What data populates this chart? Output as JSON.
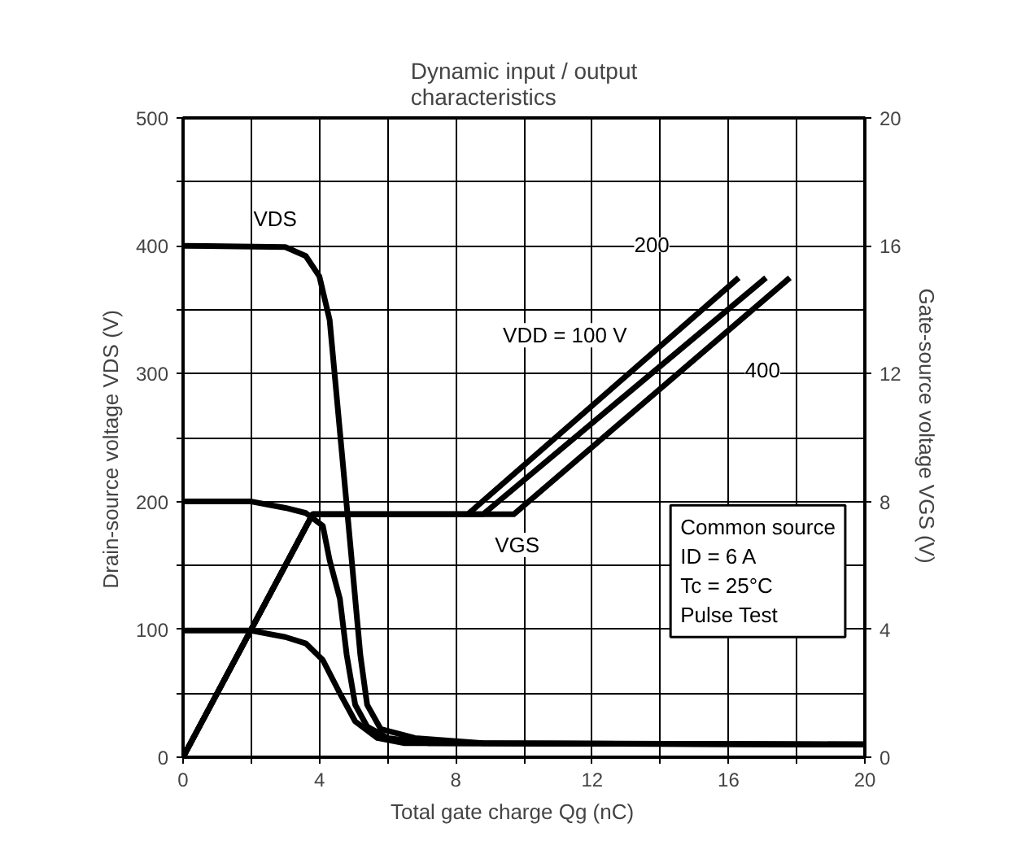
{
  "chart_data": {
    "type": "line",
    "title": "Dynamic input / output\ncharacteristics",
    "xlabel": "Total gate charge   Qg   (nC)",
    "ylabel": "Drain-source voltage   VDS   (V)",
    "y2label": "Gate-source voltage   VGS   (V)",
    "xlim": [
      0,
      20
    ],
    "ylim": [
      0,
      500
    ],
    "y2lim": [
      0,
      20
    ],
    "xticks": [
      0,
      {
        "value": 2,
        "label": null
      },
      4,
      {
        "value": 6,
        "label": null
      },
      8,
      {
        "value": 10,
        "label": null
      },
      12,
      {
        "value": 14,
        "label": null
      },
      16,
      {
        "value": 18,
        "label": null
      },
      20
    ],
    "yticks": [
      0,
      {
        "value": 50,
        "label": null
      },
      100,
      {
        "value": 150,
        "label": null
      },
      200,
      {
        "value": 250,
        "label": null
      },
      300,
      {
        "value": 350,
        "label": null
      },
      400,
      {
        "value": 450,
        "label": null
      },
      500
    ],
    "y2ticks": [
      0,
      4,
      8,
      12,
      16,
      20
    ],
    "grid": true,
    "marker": "none",
    "line_style": "solid",
    "series": [
      {
        "color": "#000000",
        "x": [
          0,
          3.0,
          3.6,
          4.0,
          4.3,
          4.6,
          4.9,
          5.2,
          5.4,
          5.8,
          6.8,
          8.8,
          20
        ],
        "values": [
          400,
          399,
          392,
          376,
          342,
          255,
          168,
          80,
          41,
          22,
          15,
          11,
          10
        ]
      },
      {
        "color": "#000000",
        "x": [
          0,
          2,
          3.0,
          3.6,
          4.1,
          4.3,
          4.6,
          4.8,
          5.05,
          5.4,
          6.0,
          7.2,
          20
        ],
        "values": [
          200,
          200,
          195,
          191,
          181,
          154,
          124,
          80,
          41,
          24,
          15,
          11,
          10
        ]
      },
      {
        "color": "#000000",
        "x": [
          0,
          2,
          3.0,
          3.6,
          4.1,
          4.6,
          5.05,
          5.7,
          6.5,
          20
        ],
        "values": [
          99,
          99,
          94,
          89,
          76,
          50,
          28,
          15,
          11,
          10
        ]
      },
      {
        "color": "#000000",
        "axis": "y2",
        "x": [
          0,
          3.8,
          8.35,
          16.3
        ],
        "values": [
          0,
          7.6,
          7.6,
          15.0
        ]
      },
      {
        "color": "#000000",
        "axis": "y2",
        "x": [
          0,
          3.8,
          8.8,
          17.1
        ],
        "values": [
          0,
          7.6,
          7.6,
          15.0
        ]
      },
      {
        "color": "#000000",
        "axis": "y2",
        "x": [
          0,
          3.8,
          9.7,
          17.8
        ],
        "values": [
          0,
          7.6,
          7.6,
          15.0
        ]
      }
    ],
    "annotations": [
      {
        "text": "VDS",
        "x": 2.7,
        "y": 421
      },
      {
        "text": "VGS",
        "x": 9.8,
        "y": 166
      },
      "VDD = 100 V",
      {
        "text": "200",
        "x": 13.75,
        "y": 401
      },
      {
        "text": "400",
        "x": 17.0,
        "y": 303
      },
      "Common source\nID = 6 A\nTc = 25°C\nPulse Test"
    ]
  }
}
